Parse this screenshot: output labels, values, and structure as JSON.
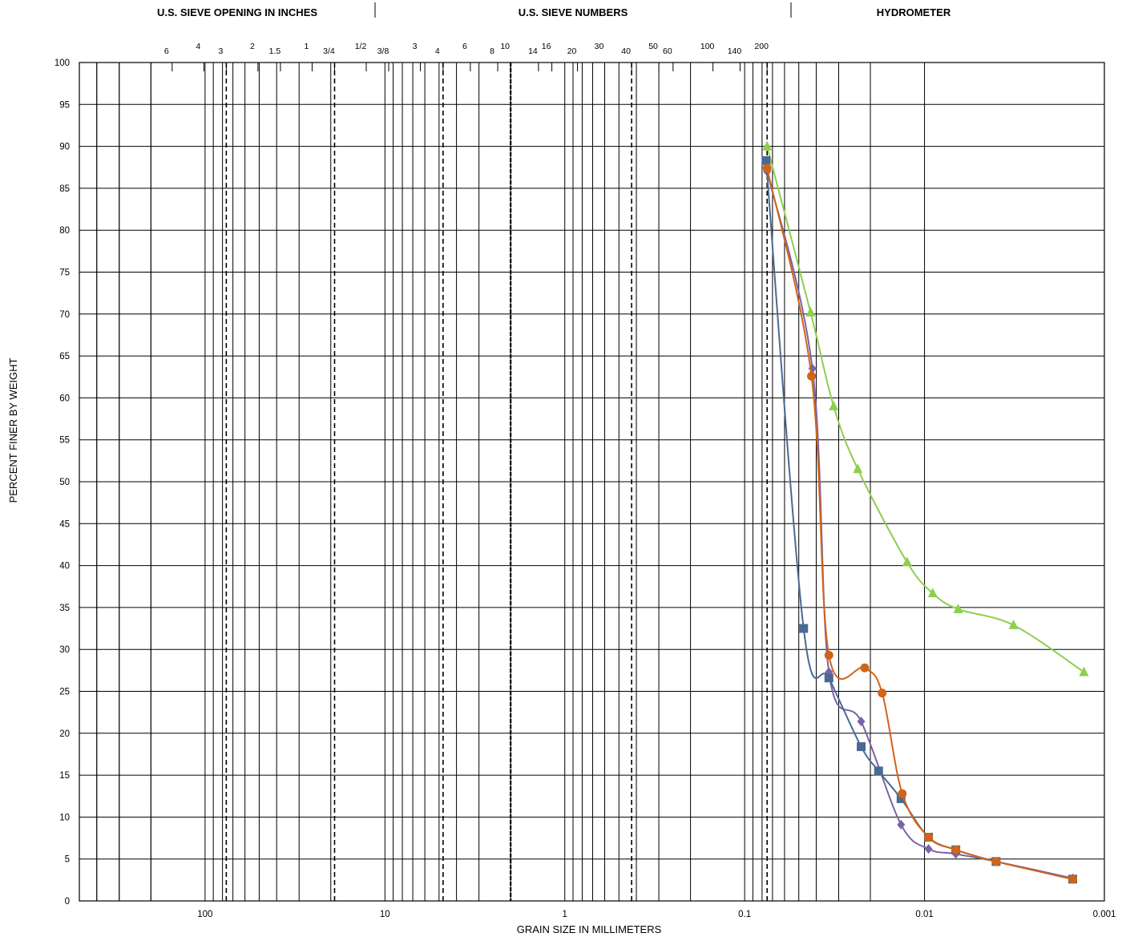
{
  "chart_data": {
    "type": "line",
    "header": {
      "inches": "U.S. SIEVE OPENING IN INCHES",
      "numbers": "U.S. SIEVE NUMBERS",
      "hydrometer": "HYDROMETER"
    },
    "xlabel": "GRAIN SIZE IN MILLIMETERS",
    "ylabel": "PERCENT  FINER  BY WEIGHT",
    "x_scale": "log-reversed",
    "xlim": [
      500,
      0.001
    ],
    "ylim": [
      0,
      100
    ],
    "grid": true,
    "x_ticks": [
      {
        "value": 100,
        "label": "100"
      },
      {
        "value": 10,
        "label": "10"
      },
      {
        "value": 1,
        "label": "1"
      },
      {
        "value": 0.1,
        "label": "0.1"
      },
      {
        "value": 0.01,
        "label": "0.01"
      },
      {
        "value": 0.001,
        "label": "0.001"
      }
    ],
    "y_ticks": [
      "0",
      "5",
      "10",
      "15",
      "20",
      "25",
      "30",
      "35",
      "40",
      "45",
      "50",
      "55",
      "60",
      "65",
      "70",
      "75",
      "80",
      "85",
      "90",
      "95",
      "100"
    ],
    "sieve_inches": [
      {
        "label": "6",
        "mm": 152.4
      },
      {
        "label": "4",
        "mm": 101.6
      },
      {
        "label": "3",
        "mm": 76.2
      },
      {
        "label": "2",
        "mm": 50.8
      },
      {
        "label": "1.5",
        "mm": 38.1
      },
      {
        "label": "1",
        "mm": 25.4
      },
      {
        "label": "3/4",
        "mm": 19.05
      },
      {
        "label": "1/2",
        "mm": 12.7
      },
      {
        "label": "3/8",
        "mm": 9.525
      }
    ],
    "sieve_numbers": [
      {
        "label": "3",
        "mm": 6.35
      },
      {
        "label": "4",
        "mm": 4.75
      },
      {
        "label": "6",
        "mm": 3.35
      },
      {
        "label": "8",
        "mm": 2.36
      },
      {
        "label": "10",
        "mm": 2.0
      },
      {
        "label": "14",
        "mm": 1.4
      },
      {
        "label": "16",
        "mm": 1.18
      },
      {
        "label": "20",
        "mm": 0.85
      },
      {
        "label": "30",
        "mm": 0.6
      },
      {
        "label": "40",
        "mm": 0.425
      },
      {
        "label": "50",
        "mm": 0.3
      },
      {
        "label": "60",
        "mm": 0.25
      },
      {
        "label": "100",
        "mm": 0.15
      },
      {
        "label": "140",
        "mm": 0.106
      },
      {
        "label": "200",
        "mm": 0.075
      }
    ],
    "dashed_lines_mm": [
      76.2,
      19.05,
      4.75,
      0.425,
      0.075
    ],
    "heavy_line_mm": 2.0,
    "series": [
      {
        "color": "#8ecf4d",
        "marker": "triangle",
        "points": [
          [
            0.075,
            90.0
          ],
          [
            0.043,
            70.2
          ],
          [
            0.032,
            59.0
          ],
          [
            0.0235,
            51.5
          ],
          [
            0.0125,
            40.4
          ],
          [
            0.009,
            36.7
          ],
          [
            0.0065,
            34.8
          ],
          [
            0.0032,
            32.9
          ],
          [
            0.0013,
            27.3
          ]
        ]
      },
      {
        "color": "#7b63a6",
        "marker": "diamond",
        "points": [
          [
            0.075,
            87.0
          ],
          [
            0.042,
            63.5
          ],
          [
            0.034,
            27.3
          ],
          [
            0.0225,
            21.4
          ],
          [
            0.0135,
            9.1
          ],
          [
            0.0095,
            6.2
          ],
          [
            0.0067,
            5.6
          ],
          [
            0.004,
            4.7
          ],
          [
            0.0015,
            2.7
          ]
        ]
      },
      {
        "color": "#4a6a92",
        "marker": "square",
        "points": [
          [
            0.076,
            88.3
          ],
          [
            0.047,
            32.5
          ],
          [
            0.034,
            26.6
          ],
          [
            0.0225,
            18.4
          ],
          [
            0.018,
            15.5
          ],
          [
            0.0135,
            12.2
          ],
          [
            0.0095,
            7.6
          ],
          [
            0.0067,
            6.1
          ],
          [
            0.004,
            4.7
          ],
          [
            0.0015,
            2.6
          ]
        ]
      },
      {
        "color": "#d06418",
        "marker": "circle",
        "points": [
          [
            0.075,
            87.4
          ],
          [
            0.0425,
            62.6
          ],
          [
            0.034,
            29.3
          ],
          [
            0.0215,
            27.8
          ],
          [
            0.0172,
            24.8
          ],
          [
            0.0133,
            12.8
          ],
          [
            0.0095,
            7.6
          ],
          [
            0.0067,
            6.1
          ],
          [
            0.004,
            4.7
          ],
          [
            0.0015,
            2.6
          ]
        ]
      }
    ]
  }
}
